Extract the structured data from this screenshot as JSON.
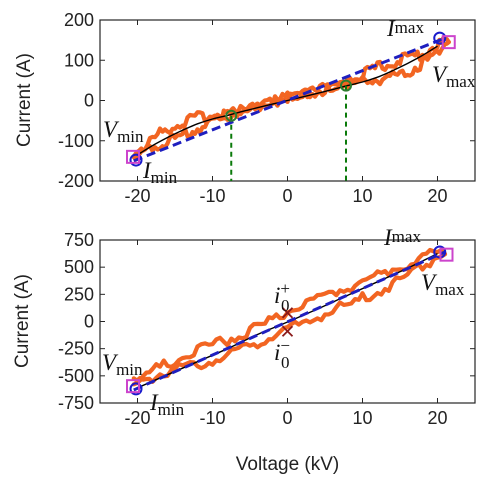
{
  "chart_data": [
    {
      "type": "line",
      "xlabel": "",
      "ylabel": "Current (A)",
      "xlim": [
        -25,
        25
      ],
      "ylim": [
        -200,
        200
      ],
      "x_ticks": [
        -20,
        -10,
        0,
        10,
        20
      ],
      "y_ticks": [
        -200,
        -100,
        0,
        100,
        200
      ],
      "grid": false,
      "series": [
        {
          "role": "measured-loop",
          "color": "#f26522",
          "upper_branch": {
            "x": [
              -20.5,
              -19,
              -17,
              -15,
              -13,
              -11,
              -9,
              -7.5,
              -6,
              -4,
              -2,
              0,
              2,
              4,
              6,
              8,
              10,
              12,
              14,
              16,
              18,
              20,
              21.5
            ],
            "y": [
              -145,
              -120,
              -88,
              -68,
              -55,
              -45,
              -40,
              -38,
              -33,
              -23,
              -12,
              -2,
              5,
              14,
              22,
              37,
              57,
              75,
              88,
              98,
              110,
              130,
              145
            ]
          },
          "lower_branch": {
            "x": [
              -20.5,
              -19,
              -17,
              -15,
              -13,
              -11,
              -9,
              -7.5,
              -6,
              -4,
              -2,
              0,
              2,
              4,
              6,
              8,
              10,
              12,
              14,
              16,
              18,
              20,
              21.5
            ],
            "y": [
              -145,
              -132,
              -118,
              -100,
              -85,
              -68,
              -52,
              -40,
              -32,
              -20,
              -8,
              0,
              8,
              18,
              28,
              38,
              42,
              45,
              52,
              65,
              85,
              112,
              145
            ]
          }
        },
        {
          "role": "fit-curve",
          "color": "#000000",
          "x": [
            -20,
            -18,
            -16,
            -14,
            -12,
            -10,
            -8,
            -6,
            -4,
            -2,
            0,
            2,
            4,
            6,
            8,
            10,
            12,
            14,
            16,
            18,
            20
          ],
          "y": [
            -135,
            -112,
            -92,
            -74,
            -58,
            -46,
            -37,
            -27,
            -18,
            -9,
            0,
            9,
            18,
            27,
            37,
            46,
            58,
            74,
            92,
            112,
            135
          ]
        },
        {
          "role": "linear-fit",
          "color": "#1f1fbf",
          "dashed": true,
          "x": [
            -20.5,
            21
          ],
          "y": [
            -150,
            155
          ]
        }
      ],
      "vlines": [
        {
          "x": -7.5,
          "y_top": -38,
          "color": "#0a7a0a"
        },
        {
          "x": 7.8,
          "y_top": 37,
          "color": "#0a7a0a"
        }
      ],
      "circle_points": [
        {
          "x": -7.5,
          "y": -38,
          "color": "#2e7d2e"
        },
        {
          "x": 7.8,
          "y": 37,
          "color": "#2e7d2e"
        }
      ],
      "markers": [
        {
          "kind": "circle",
          "x": 20.3,
          "y": 155,
          "color": "#1a1acc"
        },
        {
          "kind": "circle",
          "x": -20.2,
          "y": -148,
          "color": "#1a1acc"
        },
        {
          "kind": "square",
          "x": 21.5,
          "y": 145,
          "color": "#cc44cc"
        },
        {
          "kind": "square",
          "x": -20.6,
          "y": -140,
          "color": "#cc44cc"
        }
      ],
      "annotations": [
        {
          "name": "imax-label",
          "base": "I",
          "sub": "max"
        },
        {
          "name": "vmax-label",
          "base": "V",
          "sub": "max"
        },
        {
          "name": "vmin-label",
          "base": "V",
          "sub": "min"
        },
        {
          "name": "imin-label",
          "base": "I",
          "sub": "min"
        }
      ]
    },
    {
      "type": "line",
      "xlabel": "Voltage (kV)",
      "ylabel": "Current (A)",
      "xlim": [
        -25,
        25
      ],
      "ylim": [
        -750,
        750
      ],
      "x_ticks": [
        -20,
        -10,
        0,
        10,
        20
      ],
      "y_ticks": [
        -750,
        -500,
        -250,
        0,
        250,
        500,
        750
      ],
      "grid": false,
      "series": [
        {
          "role": "measured-loop",
          "color": "#f26522",
          "upper_branch": {
            "x": [
              -20.5,
              -18,
              -15,
              -12,
              -9,
              -6,
              -3,
              0,
              3,
              6,
              9,
              12,
              15,
              18,
              21
            ],
            "y": [
              -590,
              -480,
              -390,
              -300,
              -220,
              -140,
              -50,
              60,
              150,
              240,
              320,
              400,
              480,
              560,
              620
            ]
          },
          "lower_branch": {
            "x": [
              -20.5,
              -18,
              -15,
              -12,
              -9,
              -6,
              -3,
              0,
              3,
              6,
              9,
              12,
              15,
              18,
              21
            ],
            "y": [
              -590,
              -530,
              -480,
              -420,
              -350,
              -280,
              -190,
              -100,
              -20,
              70,
              150,
              250,
              350,
              480,
              620
            ]
          }
        },
        {
          "role": "fit-curve",
          "color": "#000000",
          "x": [
            -20,
            -16,
            -12,
            -8,
            -4,
            0,
            4,
            8,
            12,
            16,
            20
          ],
          "y": [
            -610,
            -490,
            -370,
            -250,
            -120,
            -5,
            115,
            240,
            365,
            490,
            625
          ]
        },
        {
          "role": "linear-fit",
          "color": "#1f1fbf",
          "dashed": true,
          "x": [
            -20.5,
            21
          ],
          "y": [
            -630,
            640
          ]
        }
      ],
      "cross_points": [
        {
          "x": 0,
          "y": 80,
          "color": "#8b1a1a"
        },
        {
          "x": 0,
          "y": -90,
          "color": "#8b1a1a"
        }
      ],
      "markers": [
        {
          "kind": "circle",
          "x": 20.3,
          "y": 640,
          "color": "#1a1acc"
        },
        {
          "kind": "circle",
          "x": -20.2,
          "y": -620,
          "color": "#1a1acc"
        },
        {
          "kind": "square",
          "x": 21.2,
          "y": 615,
          "color": "#cc44cc"
        },
        {
          "kind": "square",
          "x": -20.6,
          "y": -595,
          "color": "#cc44cc"
        }
      ],
      "annotations": [
        {
          "name": "imax-label",
          "base": "I",
          "sub": "max"
        },
        {
          "name": "vmax-label",
          "base": "V",
          "sub": "max"
        },
        {
          "name": "vmin-label",
          "base": "V",
          "sub": "min"
        },
        {
          "name": "imin-label",
          "base": "I",
          "sub": "min"
        },
        {
          "name": "i0-plus-label",
          "base": "i",
          "sub": "0",
          "sup": "+"
        },
        {
          "name": "i0-minus-label",
          "base": "i",
          "sub": "0",
          "sup": "−"
        }
      ]
    }
  ]
}
